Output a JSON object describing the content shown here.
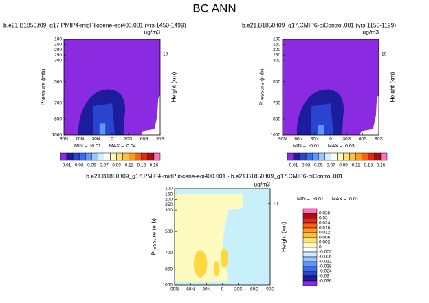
{
  "title": "BC ANN",
  "chart_data": [
    {
      "type": "contour",
      "title": "b.e21.B1850.f09_g17.PMIP4-midPliocene-eoi400.001 (yrs 1450-1499)",
      "units": "ug/m3",
      "ylabel": "Pressure (mb)",
      "y2label": "Height (km)",
      "ylim": [
        1000,
        100
      ],
      "yticks": [
        100,
        150,
        200,
        250,
        300,
        500,
        700,
        850,
        1000
      ],
      "y2ticks": [
        10
      ],
      "xlim": [
        90,
        -90
      ],
      "xticks": [
        {
          "value": 90,
          "label": "90N"
        },
        {
          "value": 60,
          "label": "60N"
        },
        {
          "value": 30,
          "label": "30N"
        },
        0,
        {
          "value": -30,
          "label": "30S"
        },
        {
          "value": -60,
          "label": "60S"
        },
        {
          "value": -90,
          "label": "90S"
        }
      ],
      "min_label": "MIN =",
      "min": -0.01,
      "max_label": "MAX =",
      "max": 0.04,
      "colorbar": {
        "labels": [
          0.01,
          0.03,
          0.05,
          0.07,
          0.09,
          0.11,
          0.13,
          0.16
        ],
        "colors": [
          "#8a2be2",
          "#1c1c9c",
          "#2a44d0",
          "#3a6cf0",
          "#5c96ff",
          "#98c8ff",
          "#d4ecff",
          "#ffffff",
          "#fffac0",
          "#ffe070",
          "#ffc040",
          "#ff9a20",
          "#ff6010",
          "#e02818",
          "#a81010",
          "#ff70c0"
        ]
      }
    },
    {
      "type": "contour",
      "title": "b.e21.B1850.f09_g17.CMIP6-piControl.001 (yrs 1150-1199)",
      "units": "ug/m3",
      "ylabel": "Pressure (mb)",
      "y2label": "Height (km)",
      "ylim": [
        1000,
        100
      ],
      "yticks": [
        100,
        150,
        200,
        250,
        300,
        500,
        700,
        850,
        1000
      ],
      "y2ticks": [
        10
      ],
      "xlim": [
        90,
        -90
      ],
      "xticks": [
        {
          "value": 90,
          "label": "90N"
        },
        {
          "value": 60,
          "label": "60N"
        },
        {
          "value": 30,
          "label": "30N"
        },
        0,
        {
          "value": -30,
          "label": "30S"
        },
        {
          "value": -60,
          "label": "60S"
        },
        {
          "value": -90,
          "label": "90S"
        }
      ],
      "min_label": "MIN =",
      "min": -0.01,
      "max_label": "MAX =",
      "max": 0.03,
      "colorbar": {
        "labels": [
          0.01,
          0.03,
          0.05,
          0.07,
          0.09,
          0.11,
          0.13,
          0.16
        ],
        "colors": [
          "#8a2be2",
          "#1c1c9c",
          "#2a44d0",
          "#3a6cf0",
          "#5c96ff",
          "#98c8ff",
          "#d4ecff",
          "#ffffff",
          "#fffac0",
          "#ffe070",
          "#ffc040",
          "#ff9a20",
          "#ff6010",
          "#e02818",
          "#a81010",
          "#ff70c0"
        ]
      }
    },
    {
      "type": "contour",
      "title": "b.e21.B1850.f09_g17.PMIP4-midPliocene-eoi400.001 - b.e21.B1850.f09_g17.CMIP6-piControl.001",
      "units": "ug/m3",
      "ylabel": "Pressure (mb)",
      "y2label": "Height (km)",
      "ylim": [
        1000,
        100
      ],
      "yticks": [
        100,
        150,
        200,
        250,
        300,
        500,
        700,
        850,
        1000
      ],
      "y2ticks": [
        10
      ],
      "xlim": [
        90,
        -90
      ],
      "xticks": [
        {
          "value": 90,
          "label": "90N"
        },
        {
          "value": 60,
          "label": "60N"
        },
        {
          "value": 30,
          "label": "30N"
        },
        0,
        {
          "value": -30,
          "label": "30S"
        },
        {
          "value": -60,
          "label": "60S"
        },
        {
          "value": -90,
          "label": "90S"
        }
      ],
      "min_label": "MIN =",
      "min": -0.01,
      "max_label": "MAX =",
      "max": 0.01,
      "colorbar": {
        "labels": [
          0.036,
          0.03,
          0.024,
          0.018,
          0.012,
          0.006,
          0.002,
          0,
          -0.002,
          -0.006,
          -0.012,
          -0.018,
          -0.024,
          -0.03,
          -0.036
        ],
        "colors": [
          "#ff70c0",
          "#a81010",
          "#e02818",
          "#ff6010",
          "#ff9a20",
          "#ffc040",
          "#ffe070",
          "#fffac0",
          "#ffffff",
          "#d4ecff",
          "#98c8ff",
          "#5c96ff",
          "#3a6cf0",
          "#2a44d0",
          "#1c1c9c",
          "#8a2be2"
        ]
      }
    }
  ]
}
